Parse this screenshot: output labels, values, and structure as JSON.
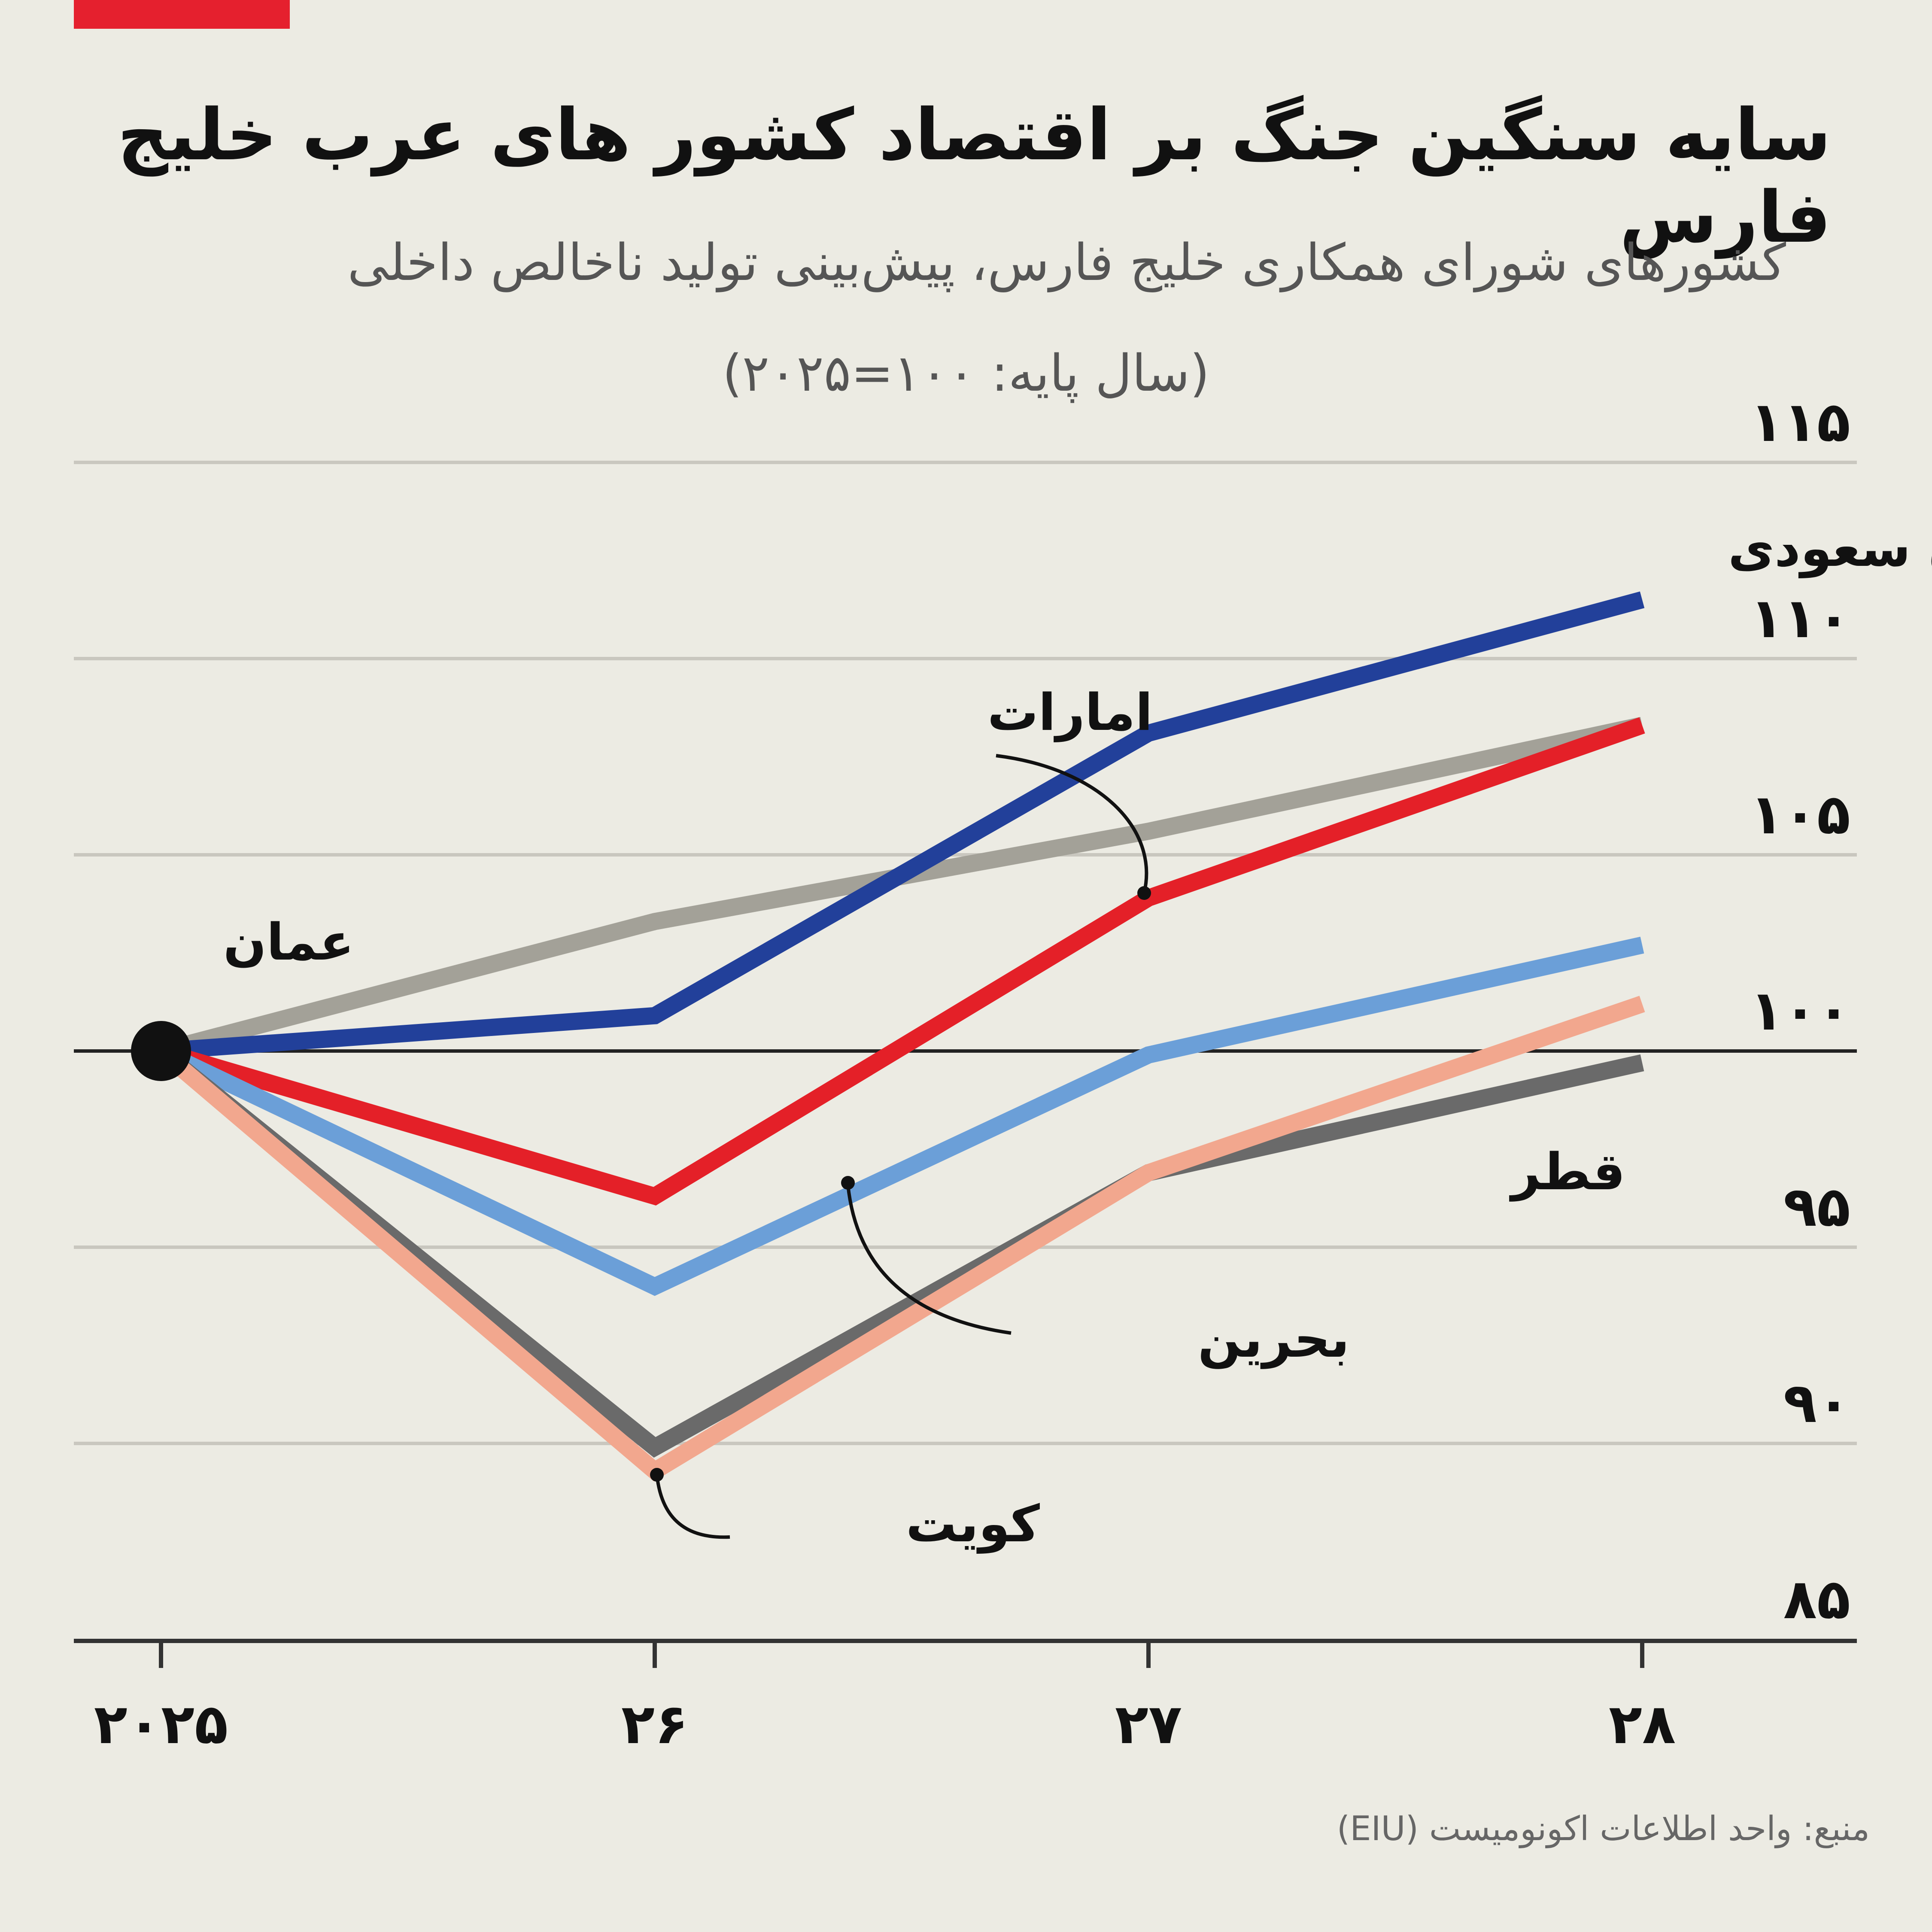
{
  "header": {
    "title": "سایه سنگین جنگ بر اقتصاد کشور های عرب خلیج فارس",
    "subtitle": "کشورهای شورای همکاری خلیج فارس، پیش‌بینی تولید ناخالص داخلی",
    "subtitle2": "(سال پایه: ۱۰۰=۲۰۲۵)",
    "accent_color": "#e5202e"
  },
  "source": "منبع: واحد اطلاعات اکونومیست (EIU)",
  "chart_data": {
    "type": "line",
    "title": "سایه سنگین جنگ بر اقتصاد کشور های عرب خلیج فارس",
    "x": [
      2025,
      2026,
      2027,
      2028
    ],
    "x_tick_labels": [
      "۲۰۲۵",
      "۲۶",
      "۲۷",
      "۲۸"
    ],
    "y_ticks": [
      85,
      90,
      95,
      100,
      105,
      110,
      115
    ],
    "y_tick_labels": [
      "۸۵",
      "۹۰",
      "۹۵",
      "۱۰۰",
      "۱۰۵",
      "۱۱۰",
      "۱۱۵"
    ],
    "ylim": [
      83,
      116
    ],
    "baseline": 100,
    "grid": true,
    "series": [
      {
        "name": "عمان",
        "color": "#a3a198",
        "values": [
          100,
          103.3,
          105.6,
          108.3
        ]
      },
      {
        "name": "عربستان سعودی",
        "color": "#22409a",
        "values": [
          100,
          100.9,
          108.1,
          111.5
        ]
      },
      {
        "name": "امارات",
        "color": "#e42028",
        "values": [
          100,
          96.3,
          103.9,
          108.3
        ]
      },
      {
        "name": "بحرین",
        "color": "#6b9fd8",
        "values": [
          100,
          94.0,
          99.9,
          102.7
        ]
      },
      {
        "name": "قطر",
        "color": "#6a6a6a",
        "values": [
          100,
          89.9,
          96.9,
          99.7
        ]
      },
      {
        "name": "کویت",
        "color": "#f2a78e",
        "values": [
          100,
          89.3,
          96.9,
          101.2
        ]
      }
    ]
  }
}
